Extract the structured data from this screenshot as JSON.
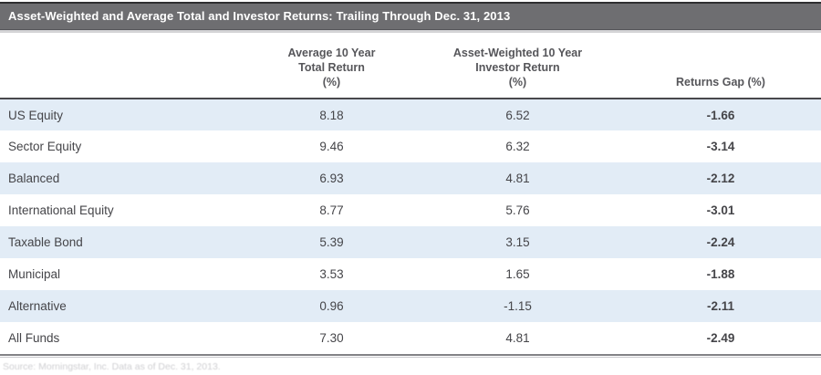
{
  "title_bar": {
    "text": "Asset-Weighted and Average Total and Investor Returns: Trailing Through Dec. 31, 2013"
  },
  "chart_data": {
    "type": "table",
    "title": "Asset-Weighted and Average Total and Investor Returns: Trailing Through Dec. 31, 2013",
    "columns": [
      "",
      "Average 10 Year Total Return (%)",
      "Asset-Weighted 10 Year Investor Return (%)",
      "Returns Gap (%)"
    ],
    "header_lines": {
      "col2": [
        "Average 10 Year",
        "Total Return",
        "(%)"
      ],
      "col3": [
        "Asset-Weighted 10 Year",
        "Investor Return",
        "(%)"
      ],
      "col4": [
        "Returns Gap (%)"
      ]
    },
    "rows": [
      {
        "category": "US Equity",
        "values": [
          "8.18",
          "6.52",
          "-1.66"
        ]
      },
      {
        "category": "Sector Equity",
        "values": [
          "9.46",
          "6.32",
          "-3.14"
        ]
      },
      {
        "category": "Balanced",
        "values": [
          "6.93",
          "4.81",
          "-2.12"
        ]
      },
      {
        "category": "International Equity",
        "values": [
          "8.77",
          "5.76",
          "-3.01"
        ]
      },
      {
        "category": "Taxable Bond",
        "values": [
          "5.39",
          "3.15",
          "-2.24"
        ]
      },
      {
        "category": "Municipal",
        "values": [
          "3.53",
          "1.65",
          "-1.88"
        ]
      },
      {
        "category": "Alternative",
        "values": [
          "0.96",
          "-1.15",
          "-2.11"
        ]
      },
      {
        "category": "All Funds",
        "values": [
          "7.30",
          "4.81",
          "-2.49"
        ]
      }
    ],
    "layout": {
      "stripe_rows": "odd rows shaded light blue",
      "gap_column_bold": true,
      "legend": "none",
      "grid": "horizontal stripes only"
    }
  },
  "footnote": {
    "text": "Source: Morningstar, Inc. Data as of Dec. 31, 2013."
  },
  "colors": {
    "title_bar_bg": "#6e6e71",
    "title_text": "#ffffff",
    "row_stripe": "#e2ecf6",
    "header_text": "#56565a",
    "body_text": "#454549",
    "header_rule": "#48484c",
    "bottom_rule": "#828286"
  }
}
